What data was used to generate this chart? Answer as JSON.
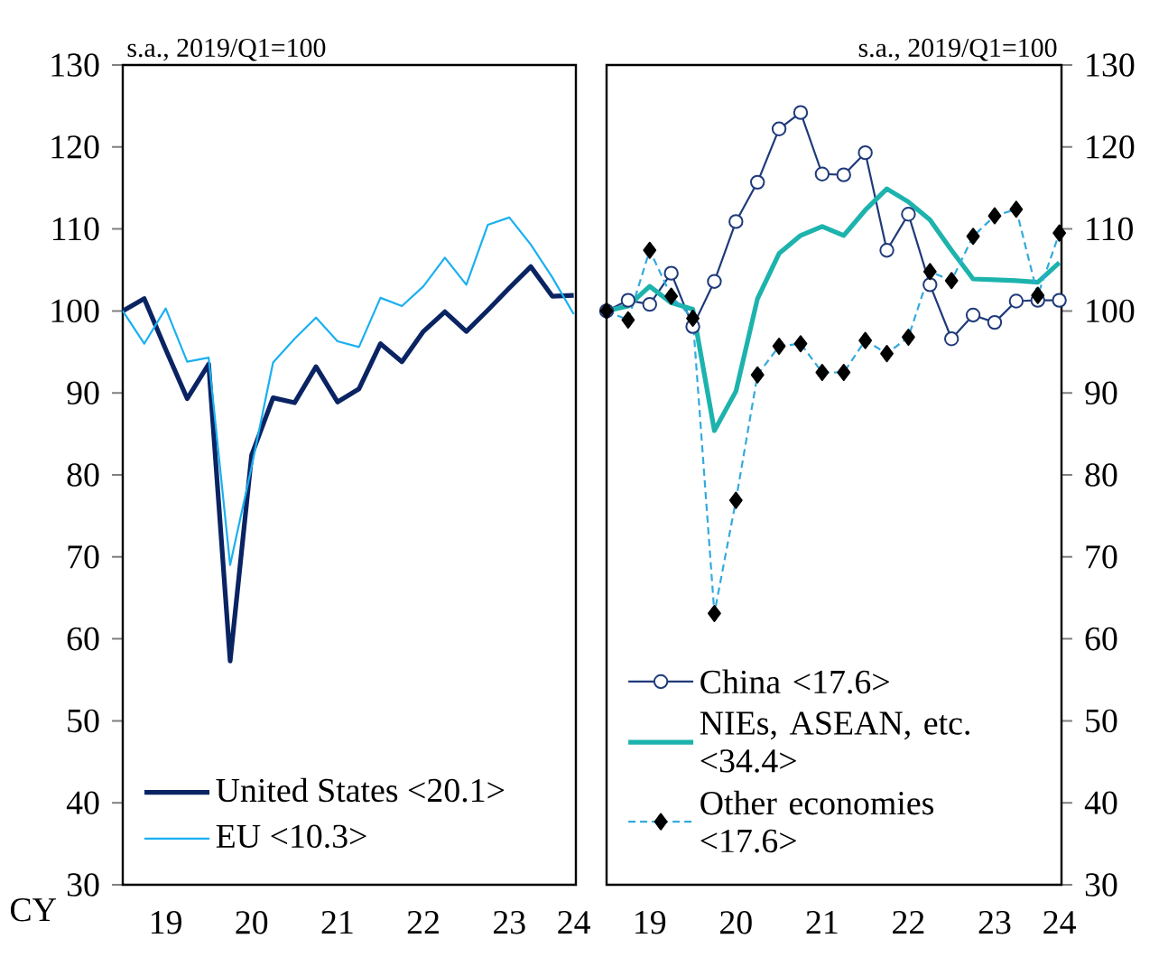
{
  "chart_data": [
    {
      "type": "line",
      "ylabel": "s.a., 2019/Q1=100",
      "xlabel": "CY",
      "categories": [
        null,
        null,
        "19",
        null,
        null,
        null,
        "20",
        null,
        null,
        null,
        "21",
        null,
        null,
        null,
        "22",
        null,
        null,
        null,
        "23",
        null,
        null,
        "24"
      ],
      "series": [
        {
          "name": "United States <20.1>",
          "color": "#0a2463",
          "values": [
            100,
            101.5,
            95.3,
            89.3,
            93.5,
            57.3,
            82.4,
            89.4,
            88.8,
            93.2,
            88.9,
            90.5,
            96.0,
            93.8,
            97.5,
            99.9,
            97.5,
            100.1,
            102.8,
            105.4,
            101.8,
            101.9
          ]
        },
        {
          "name": "EU <10.3>",
          "color": "#1ab0f0",
          "values": [
            100,
            96.0,
            100.3,
            93.8,
            94.3,
            69.0,
            81.0,
            93.7,
            96.6,
            99.2,
            96.3,
            95.6,
            101.6,
            100.6,
            103.0,
            106.5,
            103.2,
            110.5,
            111.4,
            108.1,
            104.1,
            99.6
          ]
        }
      ],
      "ylim": [
        30,
        130
      ],
      "yticks": [
        30,
        40,
        50,
        60,
        70,
        80,
        90,
        100,
        110,
        120,
        130
      ],
      "legend": "bottom left",
      "marker": "none"
    },
    {
      "type": "line",
      "ylabel": "s.a., 2019/Q1=100",
      "categories": [
        null,
        null,
        "19",
        null,
        null,
        null,
        "20",
        null,
        null,
        null,
        "21",
        null,
        null,
        null,
        "22",
        null,
        null,
        null,
        "23",
        null,
        null,
        "24"
      ],
      "series": [
        {
          "name": "China <17.6>",
          "color": "#1f3a7a",
          "marker": "circle",
          "line_style": "solid",
          "values": [
            100,
            101.3,
            100.8,
            104.6,
            98.1,
            103.6,
            110.9,
            115.7,
            122.2,
            124.2,
            116.7,
            116.6,
            119.3,
            107.4,
            111.8,
            103.2,
            96.6,
            99.5,
            98.6,
            101.2,
            101.3,
            101.3
          ]
        },
        {
          "name": "NIEs, ASEAN, etc. <34.4>",
          "color": "#1db3ad",
          "marker": "none",
          "line_style": "solid",
          "values": [
            100,
            100.6,
            103.0,
            101.0,
            100.2,
            85.4,
            90.2,
            101.5,
            107.0,
            109.2,
            110.3,
            109.2,
            112.3,
            114.9,
            113.3,
            111.1,
            107.4,
            103.9,
            103.8,
            103.7,
            103.5,
            105.9
          ]
        },
        {
          "name": "Other economies <17.6>",
          "color": "#33aadd",
          "marker": "diamond",
          "line_style": "dashed",
          "values": [
            100,
            98.9,
            107.4,
            101.8,
            99.1,
            63.1,
            76.9,
            92.2,
            95.7,
            96.0,
            92.5,
            92.5,
            96.4,
            94.8,
            96.8,
            104.8,
            103.7,
            109.1,
            111.6,
            112.4,
            101.9,
            109.5
          ]
        }
      ],
      "ylim": [
        30,
        130
      ],
      "yticks": [
        30,
        40,
        50,
        60,
        70,
        80,
        90,
        100,
        110,
        120,
        130
      ],
      "legend": "bottom left"
    }
  ]
}
